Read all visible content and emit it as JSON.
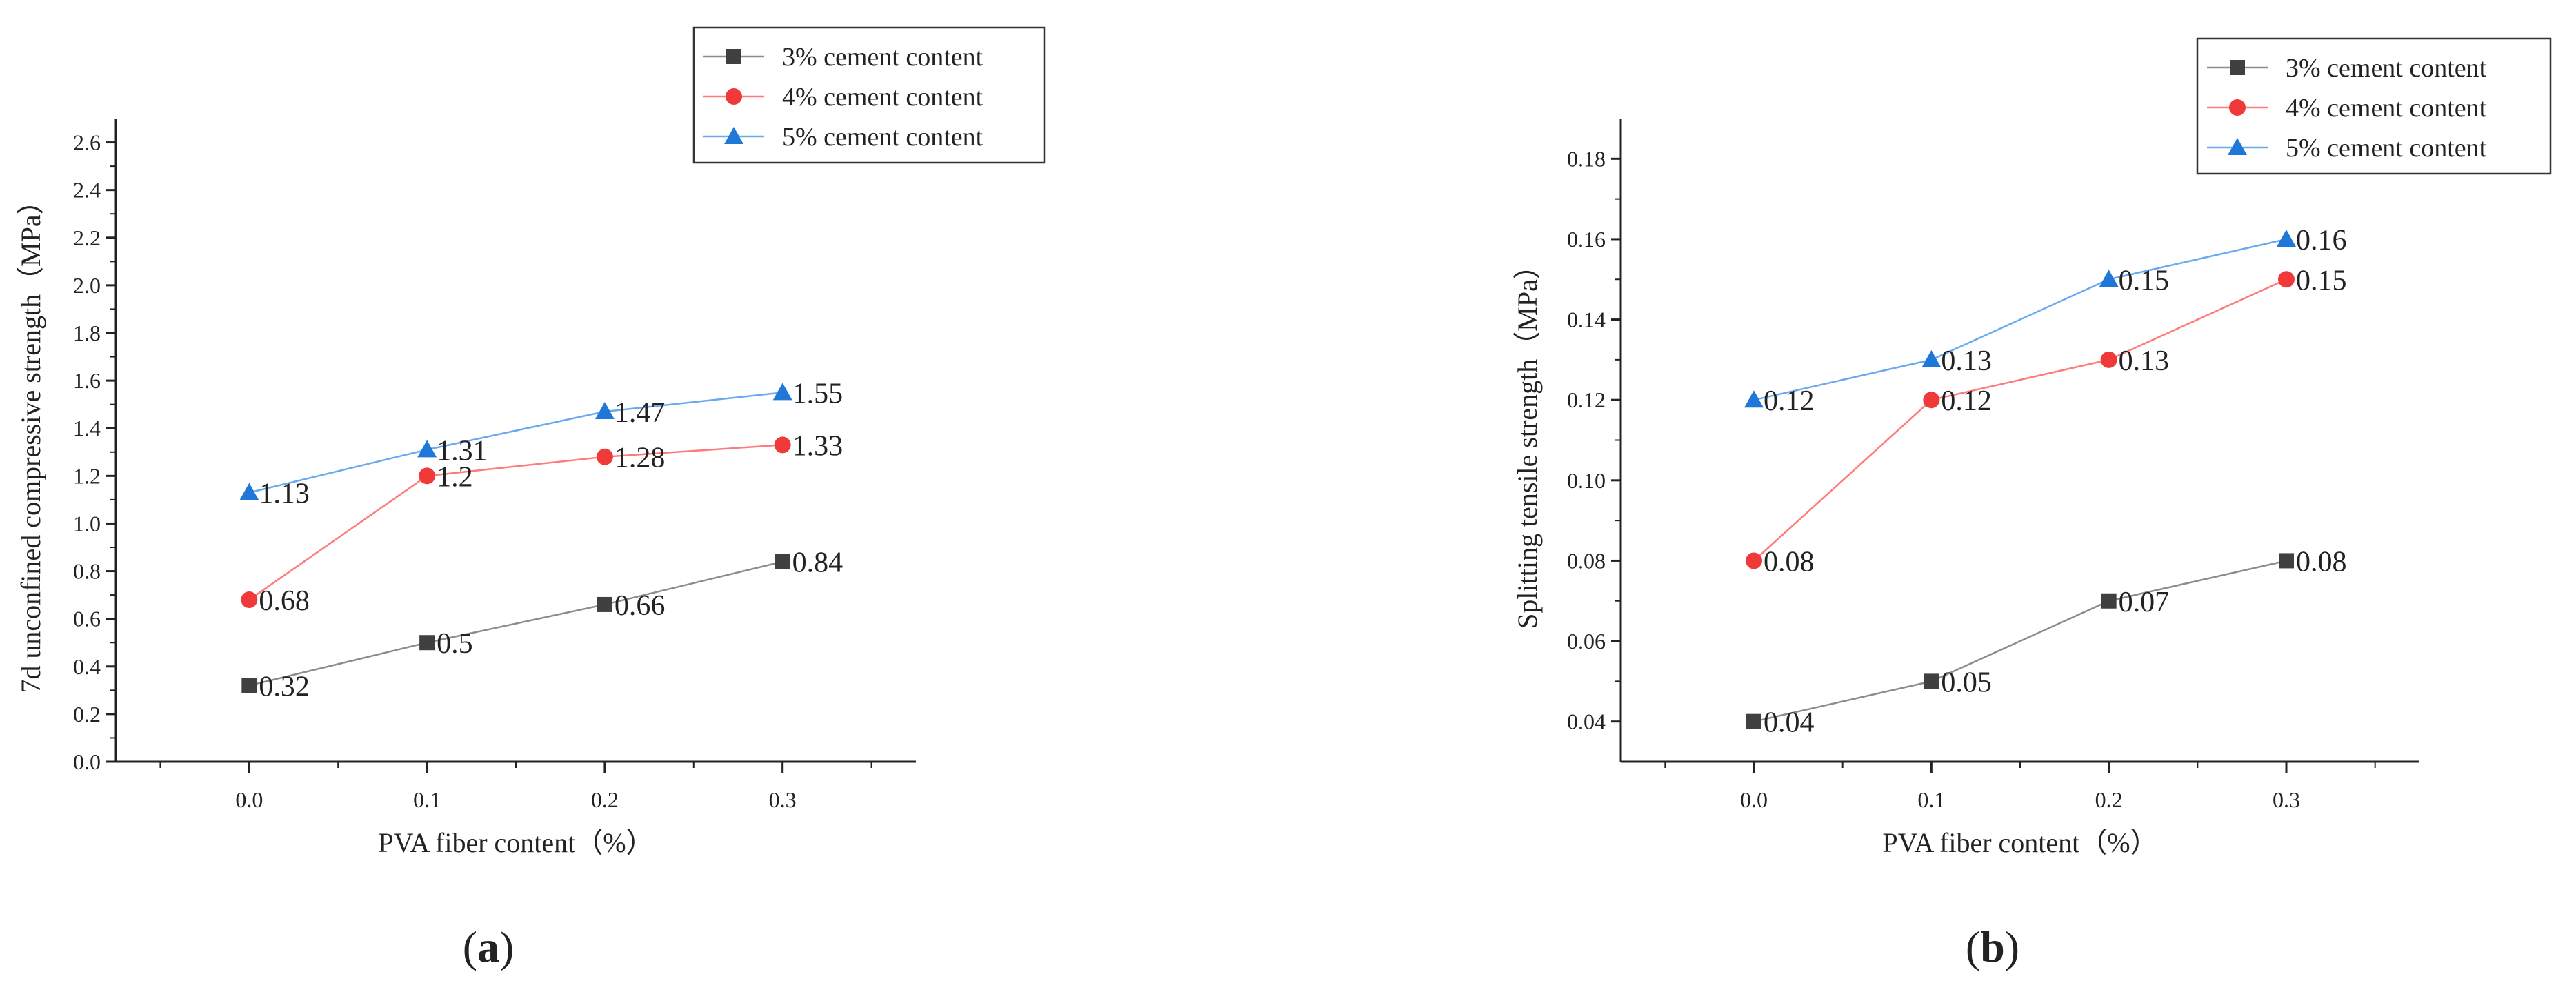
{
  "colors": {
    "series": [
      "#404040",
      "#f03a3a",
      "#1f78d8"
    ],
    "lines": [
      "#8c8c8c",
      "#ff7a7a",
      "#6aa9f0"
    ],
    "axis": "#222222"
  },
  "chart_data": [
    {
      "type": "line",
      "panel_label": "a",
      "xlabel": "PVA fiber content（%）",
      "ylabel": "7d unconfined compressive strength（MPa）",
      "x": [
        0.0,
        0.1,
        0.2,
        0.3
      ],
      "x_ticks": [
        "0.0",
        "0.1",
        "0.2",
        "0.3"
      ],
      "xlim": [
        -0.075,
        0.375
      ],
      "ylim": [
        0,
        2.7
      ],
      "y_ticks": [
        "0.0",
        "0.2",
        "0.4",
        "0.6",
        "0.8",
        "1.0",
        "1.2",
        "1.4",
        "1.6",
        "1.8",
        "2.0",
        "2.2",
        "2.4",
        "2.6"
      ],
      "legend_position": "top-right, above plot",
      "grid": false,
      "series": [
        {
          "name": "3% cement content",
          "marker": "square",
          "values": [
            0.32,
            0.5,
            0.66,
            0.84
          ],
          "labels": [
            "0.32",
            "0.5",
            "0.66",
            "0.84"
          ]
        },
        {
          "name": "4% cement content",
          "marker": "circle",
          "values": [
            0.68,
            1.2,
            1.28,
            1.33
          ],
          "labels": [
            "0.68",
            "1.2",
            "1.28",
            "1.33"
          ]
        },
        {
          "name": "5% cement content",
          "marker": "triangle",
          "values": [
            1.13,
            1.31,
            1.47,
            1.55
          ],
          "labels": [
            "1.13",
            "1.31",
            "1.47",
            "1.55"
          ]
        }
      ]
    },
    {
      "type": "line",
      "panel_label": "b",
      "xlabel": "PVA fiber content（%）",
      "ylabel": "Splitting tensile strength（MPa）",
      "x": [
        0.0,
        0.1,
        0.2,
        0.3
      ],
      "x_ticks": [
        "0.0",
        "0.1",
        "0.2",
        "0.3"
      ],
      "xlim": [
        -0.075,
        0.375
      ],
      "ylim": [
        0.03,
        0.19
      ],
      "y_ticks": [
        "0.04",
        "0.06",
        "0.08",
        "0.10",
        "0.12",
        "0.14",
        "0.16",
        "0.18"
      ],
      "legend_position": "top-right, overlapping plot",
      "grid": false,
      "series": [
        {
          "name": "3% cement content",
          "marker": "square",
          "values": [
            0.04,
            0.05,
            0.07,
            0.08
          ],
          "labels": [
            "0.04",
            "0.05",
            "0.07",
            "0.08"
          ]
        },
        {
          "name": "4% cement content",
          "marker": "circle",
          "values": [
            0.08,
            0.12,
            0.13,
            0.15
          ],
          "labels": [
            "0.08",
            "0.12",
            "0.13",
            "0.15"
          ]
        },
        {
          "name": "5% cement content",
          "marker": "triangle",
          "values": [
            0.12,
            0.13,
            0.15,
            0.16
          ],
          "labels": [
            "0.12",
            "0.13",
            "0.15",
            "0.16"
          ]
        }
      ]
    }
  ]
}
